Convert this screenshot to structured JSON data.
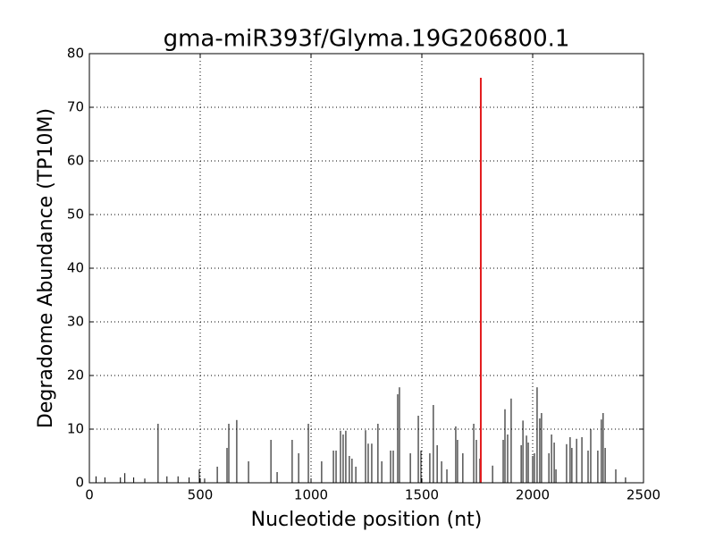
{
  "chart_data": {
    "type": "stem",
    "title": "gma-miR393f/Glyma.19G206800.1",
    "x_label": "Nucleotide position (nt)",
    "y_label": "Degradome Abundance (TP10M)",
    "color": "#000000",
    "x": [
      30,
      70,
      140,
      160,
      200,
      250,
      310,
      350,
      400,
      450,
      496,
      520,
      577,
      621,
      629,
      665,
      718,
      819,
      847,
      915,
      944,
      988,
      1048,
      1101,
      1113,
      1133,
      1145,
      1157,
      1173,
      1185,
      1202,
      1246,
      1258,
      1274,
      1302,
      1319,
      1359,
      1371,
      1391,
      1399,
      1448,
      1484,
      1496,
      1536,
      1552,
      1569,
      1589,
      1613,
      1653,
      1661,
      1685,
      1734,
      1746,
      1762,
      1819,
      1867,
      1875,
      1887,
      1903,
      1948,
      1956,
      1972,
      1980,
      2000,
      2008,
      2020,
      2032,
      2040,
      2073,
      2085,
      2097,
      2105,
      2153,
      2169,
      2177,
      2198,
      2222,
      2250,
      2262,
      2294,
      2310,
      2318,
      2327,
      2375,
      2419
    ],
    "values": [
      1.2,
      1,
      1,
      1.8,
      1,
      0.8,
      11,
      1.2,
      1.2,
      1,
      2.5,
      0.8,
      3,
      6.5,
      11,
      11.7,
      4,
      8,
      2,
      8,
      5.5,
      11,
      4,
      6,
      6,
      9.7,
      9,
      9.7,
      5,
      4.5,
      3,
      9.8,
      7.3,
      7.3,
      11,
      4,
      6,
      6,
      16.5,
      17.8,
      5.5,
      12.5,
      6,
      5.5,
      14.5,
      7,
      4,
      2.5,
      10.5,
      8,
      5.5,
      11,
      8,
      4.5,
      3.2,
      8,
      13.7,
      9,
      15.7,
      7,
      11.6,
      8.8,
      7.5,
      5,
      5.5,
      17.8,
      12,
      13,
      5.5,
      9,
      7.5,
      2.5,
      7.2,
      8.5,
      6.5,
      8.2,
      8.5,
      6,
      10,
      6,
      11.8,
      13,
      6.5,
      2.5,
      1
    ],
    "highlight": {
      "x": 1766,
      "value": 75.5,
      "color": "#e31a1c"
    },
    "xlim": [
      0,
      2500
    ],
    "xticks": [
      0,
      500,
      1000,
      1500,
      2000,
      2500
    ],
    "ylim": [
      0,
      80
    ],
    "yticks": [
      0,
      10,
      20,
      30,
      40,
      50,
      60,
      70,
      80
    ],
    "grid": true
  }
}
